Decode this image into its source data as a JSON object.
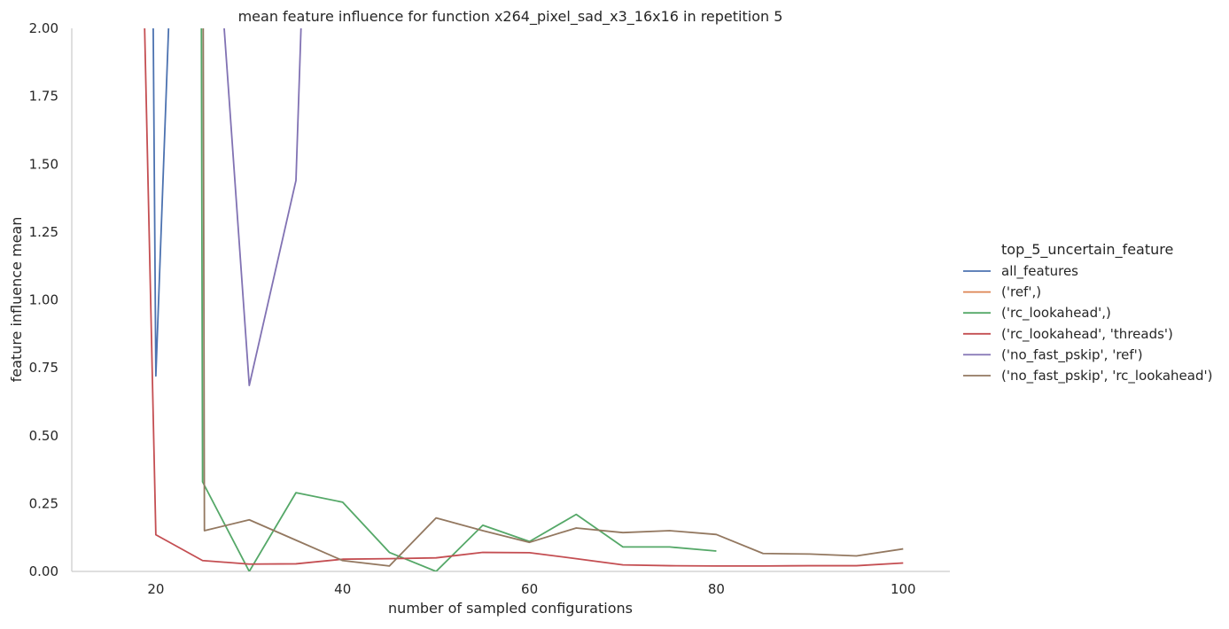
{
  "chart_data": {
    "type": "line",
    "title": "mean feature influence for function x264_pixel_sad_x3_16x16 in repetition 5",
    "xlabel": "number of sampled configurations",
    "ylabel": "feature influence mean",
    "xlim": [
      11,
      105
    ],
    "ylim": [
      0,
      2.0
    ],
    "xticks": [
      20,
      40,
      60,
      80,
      100
    ],
    "yticks": [
      0.0,
      0.25,
      0.5,
      0.75,
      1.0,
      1.25,
      1.5,
      1.75,
      2.0
    ],
    "xtick_labels": [
      "20",
      "40",
      "60",
      "80",
      "100"
    ],
    "ytick_labels": [
      "0.00",
      "0.25",
      "0.50",
      "0.75",
      "1.00",
      "1.25",
      "1.50",
      "1.75",
      "2.00"
    ],
    "grid": false,
    "legend": {
      "title": "top_5_uncertain_feature",
      "placement": "right"
    },
    "series": [
      {
        "name": "all_features",
        "color": "#4c72b0",
        "points": [
          [
            19.5,
            3.0
          ],
          [
            20.0,
            0.72
          ],
          [
            22.0,
            2.6
          ]
        ]
      },
      {
        "name": "('ref',)",
        "color": "#dd8452",
        "points": []
      },
      {
        "name": "('rc_lookahead',)",
        "color": "#55a868",
        "points": [
          [
            24.8,
            3.0
          ],
          [
            25.0,
            0.33
          ],
          [
            30,
            0.0
          ],
          [
            35,
            0.29
          ],
          [
            40,
            0.255
          ],
          [
            45,
            0.07
          ],
          [
            50,
            0.0
          ],
          [
            55,
            0.17
          ],
          [
            60,
            0.11
          ],
          [
            65,
            0.21
          ],
          [
            70,
            0.09
          ],
          [
            75,
            0.09
          ],
          [
            80,
            0.075
          ]
        ]
      },
      {
        "name": "('rc_lookahead', 'threads')",
        "color": "#c44e52",
        "points": [
          [
            18.8,
            2.0
          ],
          [
            20,
            0.135
          ],
          [
            25,
            0.04
          ],
          [
            30,
            0.027
          ],
          [
            35,
            0.028
          ],
          [
            40,
            0.045
          ],
          [
            45,
            0.047
          ],
          [
            50,
            0.05
          ],
          [
            55,
            0.07
          ],
          [
            60,
            0.069
          ],
          [
            65,
            0.047
          ],
          [
            70,
            0.024
          ],
          [
            75,
            0.021
          ],
          [
            80,
            0.02
          ],
          [
            85,
            0.02
          ],
          [
            90,
            0.021
          ],
          [
            95,
            0.021
          ],
          [
            100,
            0.031
          ]
        ]
      },
      {
        "name": "('no_fast_pskip', 'ref')",
        "color": "#8172b3",
        "points": [
          [
            26.5,
            2.4
          ],
          [
            30,
            0.685
          ],
          [
            35,
            1.44
          ],
          [
            36.5,
            3.0
          ]
        ]
      },
      {
        "name": "('no_fast_pskip', 'rc_lookahead')",
        "color": "#937860",
        "points": [
          [
            25.0,
            3.0
          ],
          [
            25.2,
            0.15
          ],
          [
            30,
            0.19
          ],
          [
            35,
            0.115
          ],
          [
            40,
            0.04
          ],
          [
            45,
            0.02
          ],
          [
            50,
            0.197
          ],
          [
            55,
            0.15
          ],
          [
            60,
            0.107
          ],
          [
            65,
            0.16
          ],
          [
            70,
            0.143
          ],
          [
            75,
            0.15
          ],
          [
            80,
            0.136
          ],
          [
            85,
            0.066
          ],
          [
            90,
            0.064
          ],
          [
            95,
            0.057
          ],
          [
            100,
            0.083
          ]
        ]
      }
    ]
  }
}
